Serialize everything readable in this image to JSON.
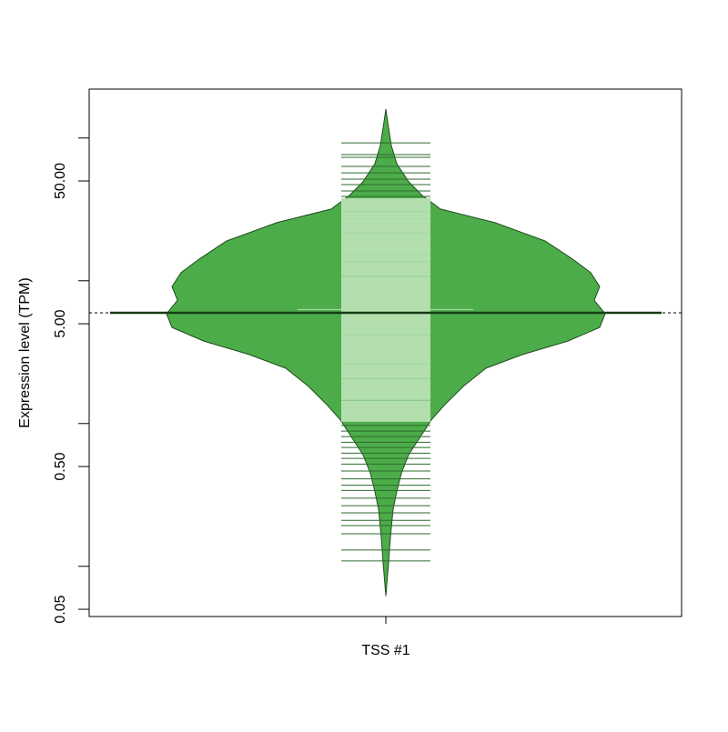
{
  "chart_data": {
    "type": "beanplot",
    "y_label": "Expression level (TPM)",
    "categories": [
      "TSS #1"
    ],
    "log_y": true,
    "ylim": [
      0.0445,
      220
    ],
    "yticks": [
      {
        "value": 0.05,
        "label": "0.05"
      },
      {
        "value": 0.1,
        "label": null
      },
      {
        "value": 0.5,
        "label": "0.50"
      },
      {
        "value": 1,
        "label": null
      },
      {
        "value": 5,
        "label": "5.00"
      },
      {
        "value": 10,
        "label": null
      },
      {
        "value": 50,
        "label": "50.00"
      },
      {
        "value": 100,
        "label": null
      }
    ],
    "color": "#4dac4a",
    "beanline_color": "#b2dfad",
    "beanline_outside_color": "#2f6a2e",
    "density": {
      "values": [
        159,
        119,
        88.6,
        66,
        49.3,
        39.6,
        31.8,
        25.5,
        19.0,
        14.2,
        11.4,
        9.1,
        7.3,
        5.87,
        4.71,
        3.78,
        3.04,
        2.44,
        1.82,
        1.36,
        1.06,
        0.81,
        0.605,
        0.451,
        0.336,
        0.251,
        0.162,
        0.104,
        0.062
      ],
      "width": [
        0,
        0.012,
        0.025,
        0.05,
        0.104,
        0.166,
        0.249,
        0.498,
        0.726,
        0.851,
        0.934,
        0.975,
        0.95,
        1,
        0.975,
        0.83,
        0.622,
        0.456,
        0.353,
        0.27,
        0.207,
        0.158,
        0.104,
        0.071,
        0.05,
        0.033,
        0.021,
        0.012,
        0
      ]
    },
    "beanlines": [
      92.5,
      76.5,
      73.3,
      63.2,
      57.0,
      51.5,
      47.2,
      42.6,
      39.0,
      35.7,
      32.7,
      29.0,
      25.8,
      23.0,
      20.4,
      18.2,
      16.2,
      14.4,
      12.8,
      11.4,
      10.1,
      9.0,
      8.0,
      7.11,
      6.32,
      5.62,
      5.0,
      4.45,
      3.95,
      3.52,
      3.13,
      2.78,
      2.47,
      2.2,
      1.95,
      1.74,
      1.55,
      1.37,
      1.22,
      1.09,
      0.97,
      0.885,
      0.81,
      0.74,
      0.68,
      0.62,
      0.57,
      0.52,
      0.465,
      0.41,
      0.37,
      0.34,
      0.3,
      0.266,
      0.237,
      0.21,
      0.193,
      0.169,
      0.13,
      0.109
    ],
    "mean": 5.96,
    "median": 6.29,
    "overall_line": 5.96
  }
}
